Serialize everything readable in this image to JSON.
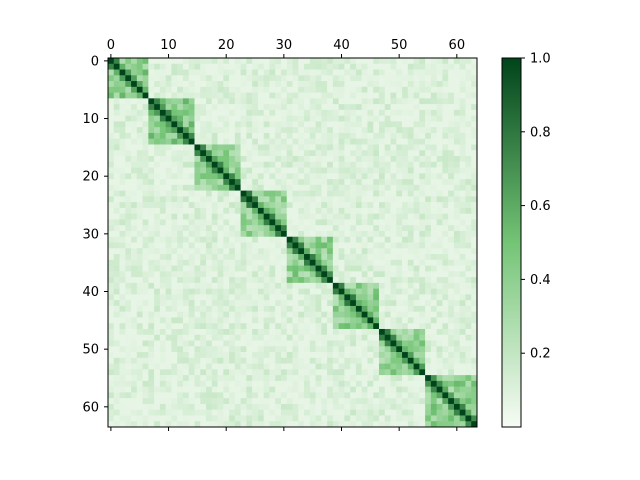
{
  "chart_data": {
    "type": "heatmap",
    "title": "",
    "xlabel": "",
    "ylabel": "",
    "size": 64,
    "x_axis_position": "top",
    "x_ticks": [
      0,
      10,
      20,
      30,
      40,
      50,
      60
    ],
    "y_ticks": [
      0,
      10,
      20,
      30,
      40,
      50,
      60
    ],
    "colormap": "Greens",
    "colors": {
      "low": "#f7fcf5",
      "mid": "#74c476",
      "high": "#00441b"
    },
    "value_range": [
      0.0,
      1.0
    ],
    "diagonal_value": 1.0,
    "blocks": [
      {
        "start": 0,
        "end": 6,
        "value": 0.45
      },
      {
        "start": 7,
        "end": 14,
        "value": 0.45
      },
      {
        "start": 15,
        "end": 22,
        "value": 0.42
      },
      {
        "start": 23,
        "end": 30,
        "value": 0.4
      },
      {
        "start": 31,
        "end": 38,
        "value": 0.42
      },
      {
        "start": 39,
        "end": 46,
        "value": 0.42
      },
      {
        "start": 47,
        "end": 54,
        "value": 0.42
      },
      {
        "start": 55,
        "end": 63,
        "value": 0.45
      }
    ],
    "background_value": 0.06,
    "colorbar": {
      "ticks": [
        0.2,
        0.4,
        0.6,
        0.8,
        1.0
      ],
      "tick_labels": [
        "0.2",
        "0.4",
        "0.6",
        "0.8",
        "1.0"
      ],
      "range": [
        0.0,
        1.0
      ]
    }
  }
}
